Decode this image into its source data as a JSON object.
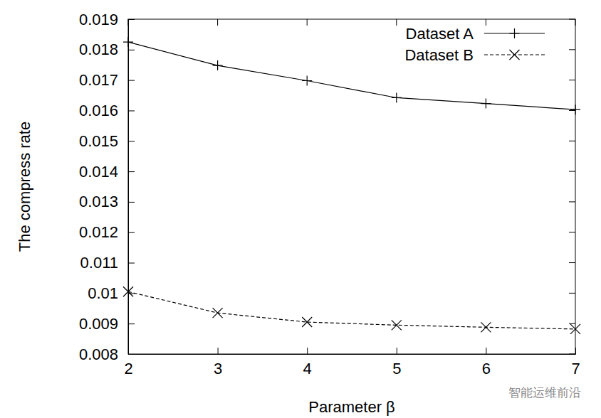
{
  "chart_data": {
    "type": "line",
    "x_label": "Parameter β",
    "y_label": "The compress rate",
    "x": [
      2,
      3,
      4,
      5,
      6,
      7
    ],
    "series": [
      {
        "name": "Dataset A",
        "color": "#000000",
        "marker": "plus",
        "line_style": "solid",
        "values": [
          0.01825,
          0.01748,
          0.01698,
          0.01642,
          0.01623,
          0.01603
        ]
      },
      {
        "name": "Dataset B",
        "color": "#000000",
        "marker": "cross",
        "line_style": "dashed",
        "values": [
          0.01005,
          0.00935,
          0.00905,
          0.00895,
          0.00888,
          0.00882
        ]
      }
    ],
    "xlim": [
      2,
      7
    ],
    "xticks": [
      2,
      3,
      4,
      5,
      6,
      7
    ],
    "ylim": [
      0.008,
      0.019
    ],
    "yticks": [
      0.008,
      0.009,
      0.01,
      0.011,
      0.012,
      0.013,
      0.014,
      0.015,
      0.016,
      0.017,
      0.018,
      0.019
    ],
    "grid": false,
    "legend": "upper right",
    "annotations": [
      "智能运维前沿"
    ]
  }
}
